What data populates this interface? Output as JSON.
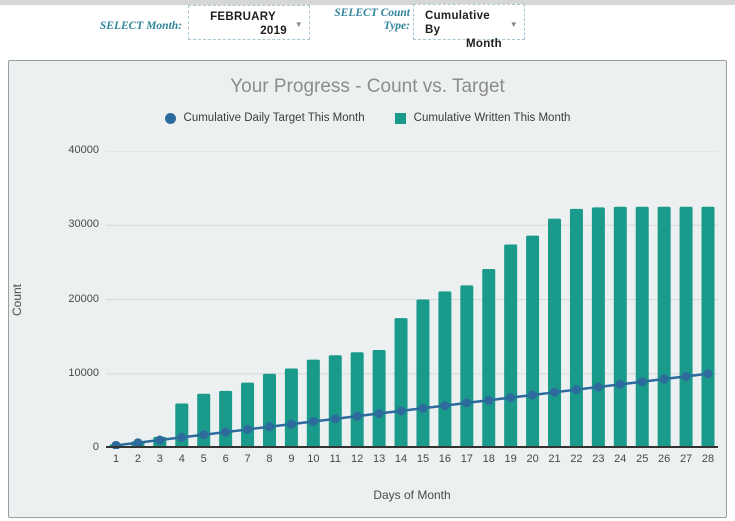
{
  "page": {
    "top_strip_color": "#d6d6d6",
    "panel_bg": "#edf0f0"
  },
  "controls": {
    "month_label": "SELECT Month:",
    "month_value_line1": "FEBRUARY",
    "month_value_line2": "2019",
    "count_type_label_line1": "SELECT Count",
    "count_type_label_line2": "Type:",
    "count_type_value_line1": "Cumulative By",
    "count_type_value_line2": "Month",
    "dropdown_caret": "▼",
    "label_color": "#31859c"
  },
  "chart_data": {
    "type": "bar",
    "title": "Your Progress - Count vs. Target",
    "xlabel": "Days of Month",
    "ylabel": "Count",
    "ylim": [
      0,
      40000
    ],
    "yticks": [
      0,
      10000,
      20000,
      30000,
      40000
    ],
    "grid": true,
    "legend_position": "top",
    "categories": [
      1,
      2,
      3,
      4,
      5,
      6,
      7,
      8,
      9,
      10,
      11,
      12,
      13,
      14,
      15,
      16,
      17,
      18,
      19,
      20,
      21,
      22,
      23,
      24,
      25,
      26,
      27,
      28
    ],
    "series": [
      {
        "name": "Cumulative Daily Target This Month",
        "type": "line",
        "color": "#2d6b9d",
        "values": [
          357,
          714,
          1071,
          1429,
          1786,
          2143,
          2500,
          2857,
          3214,
          3571,
          3929,
          4286,
          4643,
          5000,
          5357,
          5714,
          6071,
          6429,
          6786,
          7143,
          7500,
          7857,
          8214,
          8571,
          8929,
          9286,
          9643,
          10000
        ]
      },
      {
        "name": "Cumulative Written This Month",
        "type": "bar",
        "color": "#199a8a",
        "values": [
          500,
          900,
          1500,
          6000,
          7300,
          7700,
          8800,
          10000,
          10700,
          11900,
          12500,
          12900,
          13200,
          17500,
          20000,
          21100,
          21900,
          24100,
          27400,
          28600,
          30900,
          32200,
          32400,
          32500,
          32500,
          32500,
          32500,
          32500
        ]
      }
    ],
    "colors": {
      "gridline": "#d7dada",
      "axis_line": "#333333",
      "tick_text": "#484848"
    }
  }
}
